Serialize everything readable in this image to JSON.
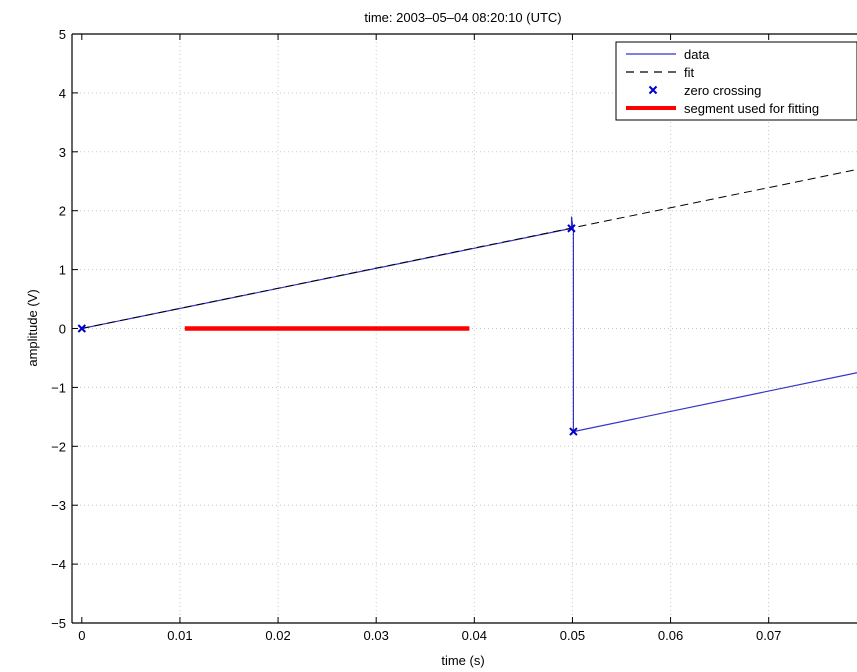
{
  "chart_data": {
    "type": "line",
    "title": "time: 2003–05–04 08:20:10 (UTC)",
    "xlabel": "time (s)",
    "ylabel": "amplitude (V)",
    "xlim": [
      -0.001,
      0.079
    ],
    "ylim": [
      -5,
      5
    ],
    "xticks": [
      0,
      0.01,
      0.02,
      0.03,
      0.04,
      0.05,
      0.06,
      0.07
    ],
    "xtick_labels": [
      "0",
      "0.01",
      "0.02",
      "0.03",
      "0.04",
      "0.05",
      "0.06",
      "0.07"
    ],
    "yticks": [
      5,
      4,
      3,
      2,
      1,
      0,
      -1,
      -2,
      -3,
      -4,
      -5
    ],
    "ytick_labels": [
      "5",
      "4",
      "3",
      "2",
      "1",
      "0",
      "−1",
      "−2",
      "−3",
      "−4",
      "−5"
    ],
    "grid": true,
    "legend_position": "top-right",
    "series": [
      {
        "name": "data",
        "style": "solid",
        "color": "#3333cc",
        "x": [
          0,
          0.0499,
          0.0499,
          0.0501,
          0.0501,
          0.079
        ],
        "y": [
          0,
          1.7,
          1.9,
          1.65,
          -1.75,
          -0.75
        ]
      },
      {
        "name": "fit",
        "style": "dashed",
        "color": "#000000",
        "x": [
          0,
          0.079
        ],
        "y": [
          0,
          2.7
        ]
      },
      {
        "name": "zero crossing",
        "style": "marker",
        "color": "#0000cc",
        "x": [
          0,
          0.0499,
          0.0501
        ],
        "y": [
          0,
          1.7,
          -1.75
        ]
      },
      {
        "name": "segment used for fitting",
        "style": "thick",
        "color": "#ff0000",
        "x": [
          0.0105,
          0.0395
        ],
        "y": [
          0,
          0
        ]
      }
    ]
  }
}
